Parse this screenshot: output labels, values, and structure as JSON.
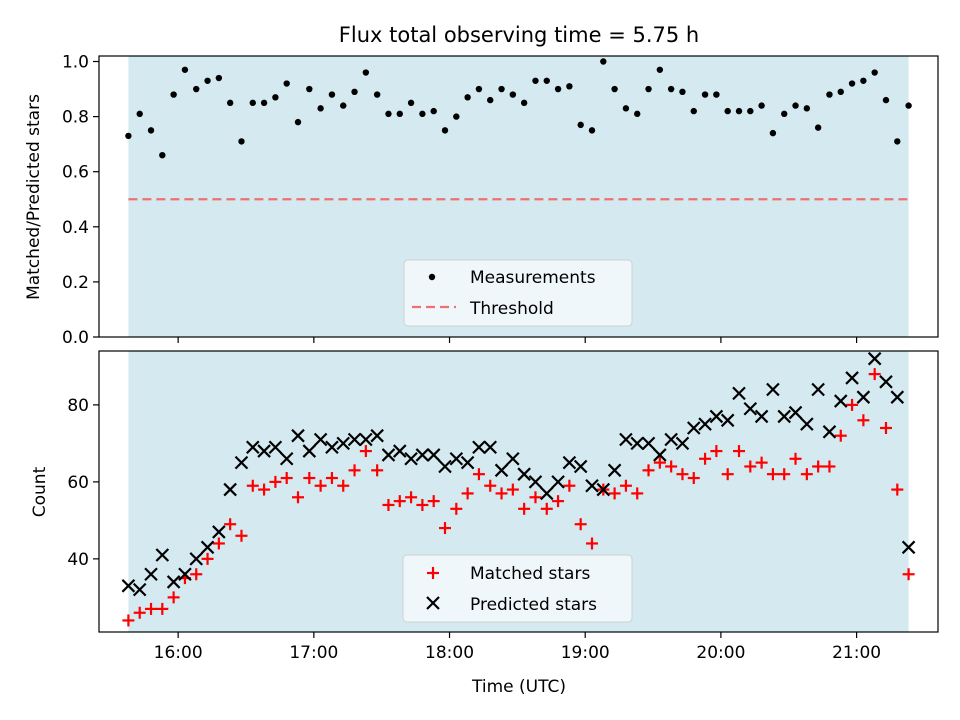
{
  "figure": {
    "title": "Flux total observing time = 5.75 h",
    "xlabel": "Time (UTC)",
    "xtick_labels": [
      "16:00",
      "17:00",
      "18:00",
      "19:00",
      "20:00",
      "21:00"
    ],
    "shade_color": "#d4eaf0",
    "shade_range": [
      "15:38",
      "21:23"
    ]
  },
  "chart_data": [
    {
      "type": "scatter",
      "ylabel": "Matched/Predicted stars",
      "ylim": [
        0,
        1.02
      ],
      "yticks": [
        "0.0",
        "0.2",
        "0.4",
        "0.6",
        "0.8",
        "1.0"
      ],
      "legend": {
        "position": "bottom-center",
        "entries": [
          "Measurements",
          "Threshold"
        ]
      },
      "threshold": 0.5,
      "threshold_color": "#f07070",
      "series": [
        {
          "name": "Measurements",
          "color": "#000000",
          "x": [
            "15:38",
            "15:43",
            "15:48",
            "15:53",
            "15:58",
            "16:03",
            "16:08",
            "16:13",
            "16:18",
            "16:23",
            "16:28",
            "16:33",
            "16:38",
            "16:43",
            "16:48",
            "16:53",
            "16:58",
            "17:03",
            "17:08",
            "17:13",
            "17:18",
            "17:23",
            "17:28",
            "17:33",
            "17:38",
            "17:43",
            "17:48",
            "17:53",
            "17:58",
            "18:03",
            "18:08",
            "18:13",
            "18:18",
            "18:23",
            "18:28",
            "18:33",
            "18:38",
            "18:43",
            "18:48",
            "18:53",
            "18:58",
            "19:03",
            "19:08",
            "19:13",
            "19:18",
            "19:23",
            "19:28",
            "19:33",
            "19:38",
            "19:43",
            "19:48",
            "19:53",
            "19:58",
            "20:03",
            "20:08",
            "20:13",
            "20:18",
            "20:23",
            "20:28",
            "20:33",
            "20:38",
            "20:43",
            "20:48",
            "20:53",
            "20:58",
            "21:03",
            "21:08",
            "21:13",
            "21:18",
            "21:23"
          ],
          "y": [
            0.73,
            0.81,
            0.75,
            0.66,
            0.88,
            0.97,
            0.9,
            0.93,
            0.94,
            0.85,
            0.71,
            0.85,
            0.85,
            0.87,
            0.92,
            0.78,
            0.9,
            0.83,
            0.88,
            0.84,
            0.89,
            0.96,
            0.88,
            0.81,
            0.81,
            0.85,
            0.81,
            0.82,
            0.75,
            0.8,
            0.87,
            0.9,
            0.86,
            0.9,
            0.88,
            0.85,
            0.93,
            0.93,
            0.9,
            0.91,
            0.77,
            0.75,
            1.0,
            0.9,
            0.83,
            0.81,
            0.9,
            0.97,
            0.9,
            0.89,
            0.82,
            0.88,
            0.88,
            0.82,
            0.82,
            0.82,
            0.84,
            0.74,
            0.81,
            0.84,
            0.83,
            0.76,
            0.88,
            0.89,
            0.92,
            0.93,
            0.96,
            0.86,
            0.71,
            0.84
          ]
        }
      ]
    },
    {
      "type": "scatter",
      "ylabel": "Count",
      "ylim": [
        21,
        94
      ],
      "yticks": [
        "40",
        "60",
        "80"
      ],
      "legend": {
        "position": "bottom-center",
        "entries": [
          "Matched stars",
          "Predicted stars"
        ]
      },
      "series": [
        {
          "name": "Matched stars",
          "color": "#ff0000",
          "marker": "plus",
          "x": [
            "15:38",
            "15:43",
            "15:48",
            "15:53",
            "15:58",
            "16:03",
            "16:08",
            "16:13",
            "16:18",
            "16:23",
            "16:28",
            "16:33",
            "16:38",
            "16:43",
            "16:48",
            "16:53",
            "16:58",
            "17:03",
            "17:08",
            "17:13",
            "17:18",
            "17:23",
            "17:28",
            "17:33",
            "17:38",
            "17:43",
            "17:48",
            "17:53",
            "17:58",
            "18:03",
            "18:08",
            "18:13",
            "18:18",
            "18:23",
            "18:28",
            "18:33",
            "18:38",
            "18:43",
            "18:48",
            "18:53",
            "18:58",
            "19:03",
            "19:08",
            "19:13",
            "19:18",
            "19:23",
            "19:28",
            "19:33",
            "19:38",
            "19:43",
            "19:48",
            "19:53",
            "19:58",
            "20:03",
            "20:08",
            "20:13",
            "20:18",
            "20:23",
            "20:28",
            "20:33",
            "20:38",
            "20:43",
            "20:48",
            "20:53",
            "20:58",
            "21:03",
            "21:08",
            "21:13",
            "21:18",
            "21:23"
          ],
          "y": [
            24,
            26,
            27,
            27,
            30,
            35,
            36,
            40,
            44,
            49,
            46,
            59,
            58,
            60,
            61,
            56,
            61,
            59,
            61,
            59,
            63,
            68,
            63,
            54,
            55,
            56,
            54,
            55,
            48,
            53,
            57,
            62,
            59,
            57,
            58,
            53,
            56,
            53,
            55,
            59,
            49,
            44,
            58,
            57,
            59,
            57,
            63,
            65,
            64,
            62,
            61,
            66,
            68,
            62,
            68,
            64,
            65,
            62,
            62,
            66,
            62,
            64,
            64,
            72,
            80,
            76,
            88,
            74,
            58,
            36
          ]
        },
        {
          "name": "Predicted stars",
          "color": "#000000",
          "marker": "x",
          "x": [
            "15:38",
            "15:43",
            "15:48",
            "15:53",
            "15:58",
            "16:03",
            "16:08",
            "16:13",
            "16:18",
            "16:23",
            "16:28",
            "16:33",
            "16:38",
            "16:43",
            "16:48",
            "16:53",
            "16:58",
            "17:03",
            "17:08",
            "17:13",
            "17:18",
            "17:23",
            "17:28",
            "17:33",
            "17:38",
            "17:43",
            "17:48",
            "17:53",
            "17:58",
            "18:03",
            "18:08",
            "18:13",
            "18:18",
            "18:23",
            "18:28",
            "18:33",
            "18:38",
            "18:43",
            "18:48",
            "18:53",
            "18:58",
            "19:03",
            "19:08",
            "19:13",
            "19:18",
            "19:23",
            "19:28",
            "19:33",
            "19:38",
            "19:43",
            "19:48",
            "19:53",
            "19:58",
            "20:03",
            "20:08",
            "20:13",
            "20:18",
            "20:23",
            "20:28",
            "20:33",
            "20:38",
            "20:43",
            "20:48",
            "20:53",
            "20:58",
            "21:03",
            "21:08",
            "21:13",
            "21:18",
            "21:23"
          ],
          "y": [
            33,
            32,
            36,
            41,
            34,
            36,
            40,
            43,
            47,
            58,
            65,
            69,
            68,
            69,
            66,
            72,
            68,
            71,
            69,
            70,
            71,
            71,
            72,
            67,
            68,
            66,
            67,
            67,
            64,
            66,
            65,
            69,
            69,
            63,
            66,
            62,
            60,
            57,
            60,
            65,
            64,
            59,
            58,
            63,
            71,
            70,
            70,
            67,
            71,
            70,
            74,
            75,
            77,
            76,
            83,
            79,
            77,
            84,
            77,
            78,
            75,
            84,
            73,
            81,
            87,
            82,
            92,
            86,
            82,
            43
          ]
        }
      ]
    }
  ]
}
